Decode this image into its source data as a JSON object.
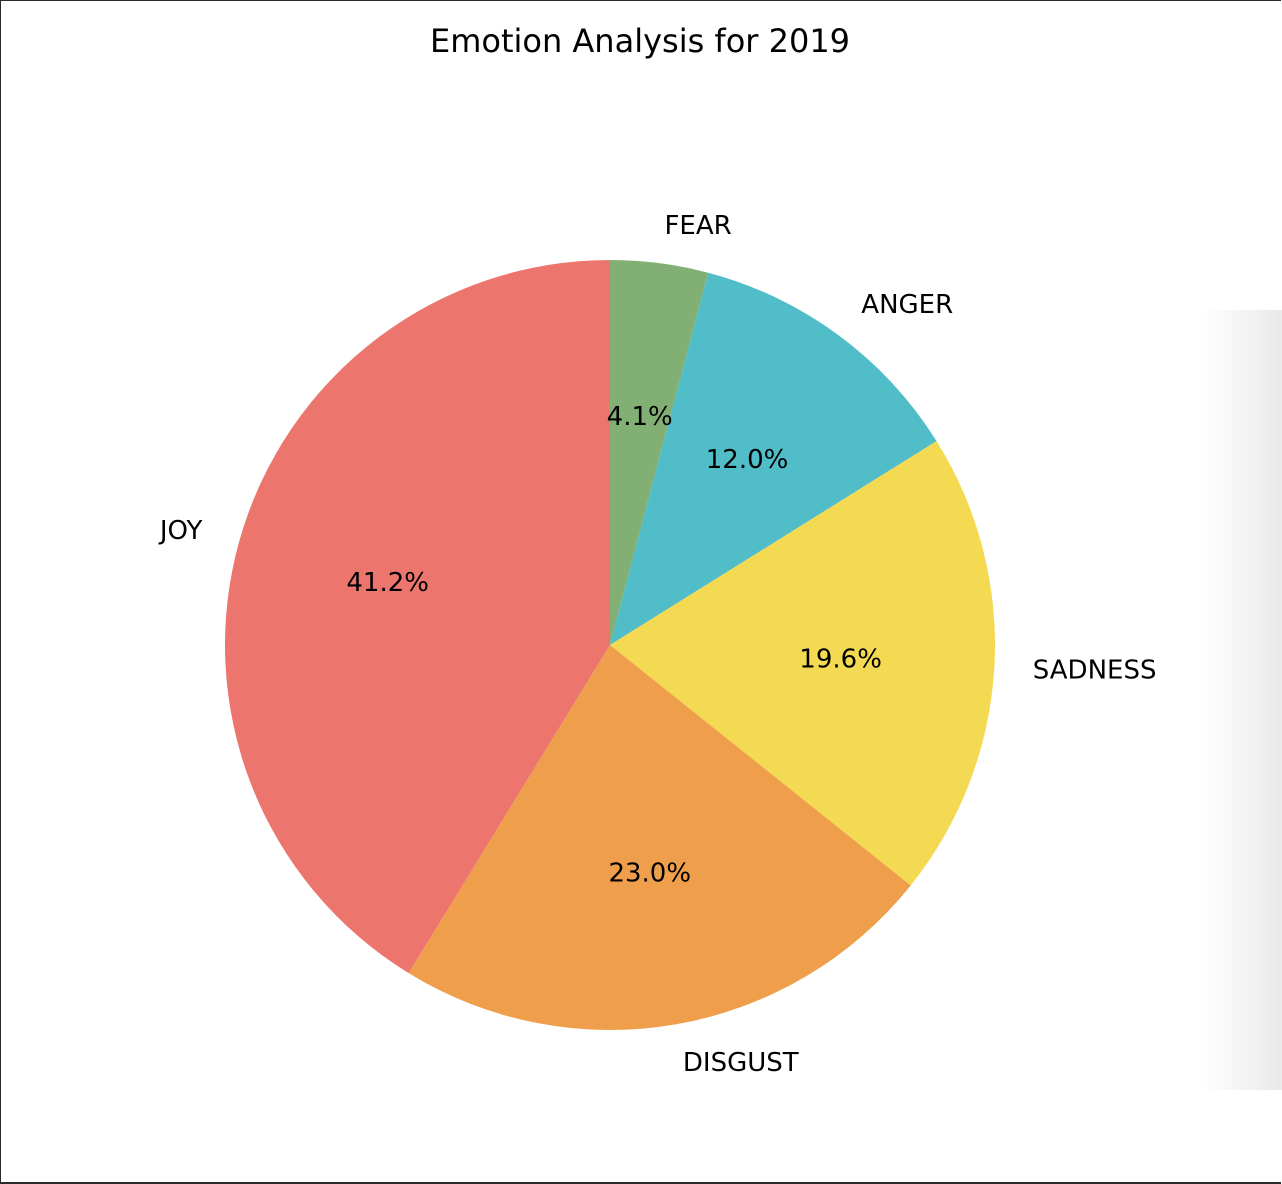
{
  "chart_data": {
    "type": "pie",
    "title": "Emotion Analysis for 2019",
    "start_angle_deg": 90,
    "direction": "clockwise",
    "slices": [
      {
        "label": "FEAR",
        "value": 4.1,
        "pct_label": "4.1%",
        "color": "#82b074"
      },
      {
        "label": "ANGER",
        "value": 12.0,
        "pct_label": "12.0%",
        "color": "#50bdc8"
      },
      {
        "label": "SADNESS",
        "value": 19.6,
        "pct_label": "19.6%",
        "color": "#f3da52"
      },
      {
        "label": "DISGUST",
        "value": 23.0,
        "pct_label": "23.0%",
        "color": "#ef9f4b"
      },
      {
        "label": "JOY",
        "value": 41.2,
        "pct_label": "41.2%",
        "color": "#ec756e"
      }
    ]
  }
}
